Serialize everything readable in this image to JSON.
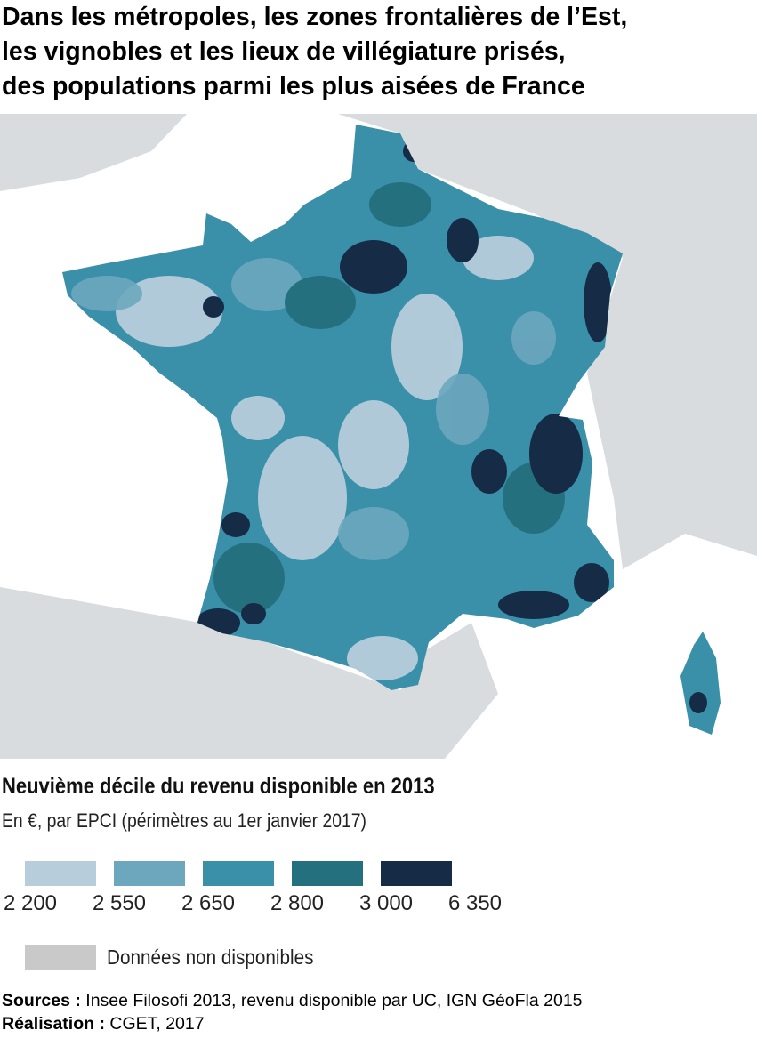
{
  "header": {
    "title_lines": [
      "Dans les métropoles, les zones frontalières de l’Est,",
      "les vignobles et les lieux de villégiature prisés,",
      "des populations parmi les plus aisées de France"
    ]
  },
  "legend": {
    "title": "Neuvième décile du revenu disponible en 2013",
    "subtitle": "En €, par EPCI (périmètres au 1er janvier 2017)",
    "colors": [
      "#b7cddb",
      "#6da7be",
      "#3a8fa9",
      "#25707f",
      "#152b46"
    ],
    "breaks": [
      "2 200",
      "2 550",
      "2 650",
      "2 800",
      "3 000",
      "6 350"
    ],
    "no_data": {
      "label": "Données non disponibles",
      "color": "#c9c9c9"
    }
  },
  "footer": {
    "sources_label": "Sources :",
    "sources": "Insee Filosofi 2013, revenu disponible par UC, IGN GéoFla 2015",
    "credit_label": "Réalisation :",
    "credit": "CGET, 2017"
  }
}
